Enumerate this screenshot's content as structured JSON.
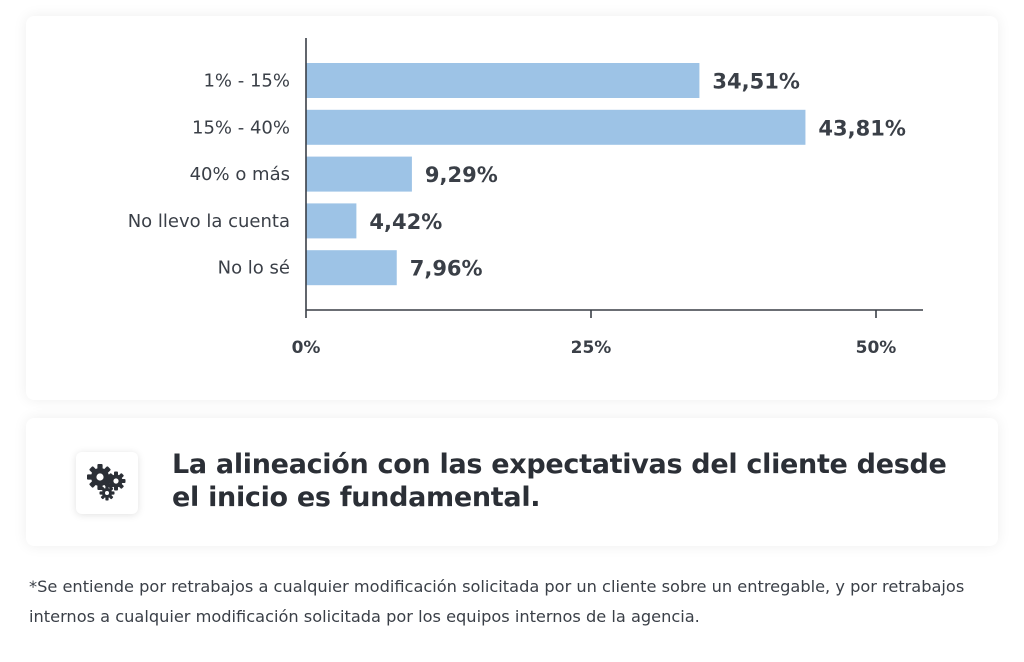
{
  "chart_data": {
    "type": "bar",
    "orientation": "horizontal",
    "categories": [
      "1% - 15%",
      "15% - 40%",
      "40% o más",
      "No llevo la cuenta",
      "No lo sé"
    ],
    "values": [
      34.51,
      43.81,
      9.29,
      4.42,
      7.96
    ],
    "value_labels": [
      "34,51%",
      "43,81%",
      "9,29%",
      "4,42%",
      "7,96%"
    ],
    "x_ticks": [
      0,
      25,
      50
    ],
    "x_tick_labels": [
      "0%",
      "25%",
      "50%"
    ],
    "xlim": [
      0,
      54
    ],
    "bar_color": "#9dc3e6",
    "grid": false
  },
  "callout": {
    "text_part1": "La alineación con las expectativas del cliente desde el inicio es ",
    "text_emphasis": "fundamental.",
    "icon": "gears-icon"
  },
  "footnote": "*Se entiende por retrabajos a cualquier modificación solicitada por un cliente sobre un entregable, y por retrabajos internos a cualquier modificación solicitada por los equipos internos de la agencia."
}
